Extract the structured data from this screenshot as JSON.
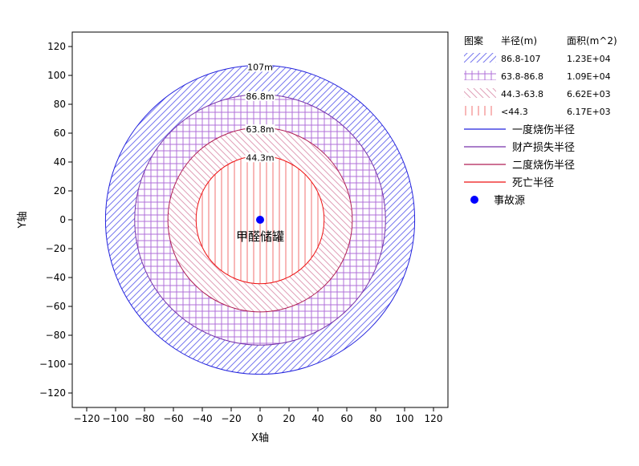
{
  "chart_data": {
    "type": "circle-zones",
    "title": "",
    "xlabel": "X轴",
    "ylabel": "Y轴",
    "xlim": [
      -130,
      130
    ],
    "ylim": [
      -130,
      130
    ],
    "xticks": [
      -120,
      -100,
      -80,
      -60,
      -40,
      -20,
      0,
      20,
      40,
      60,
      80,
      100,
      120
    ],
    "yticks": [
      -120,
      -100,
      -80,
      -60,
      -40,
      -20,
      0,
      20,
      40,
      60,
      80,
      100,
      120
    ],
    "grid": false,
    "source": {
      "x": 0,
      "y": 0,
      "label": "甲醛储罐",
      "color": "#0000ff"
    },
    "circles": [
      {
        "name": "一度烧伤半径",
        "radius": 107,
        "label": "107m",
        "color": "#2222dd",
        "hatch": "diag-right",
        "hatch_color": "#7777ee",
        "range": "86.8-107",
        "area": "1.23E+04"
      },
      {
        "name": "财产损失半径",
        "radius": 86.8,
        "label": "86.8m",
        "color": "#7733aa",
        "hatch": "grid",
        "hatch_color": "#b070d8",
        "range": "63.8-86.8",
        "area": "1.09E+04"
      },
      {
        "name": "二度烧伤半径",
        "radius": 63.8,
        "label": "63.8m",
        "color": "#b01e55",
        "hatch": "diag-left",
        "hatch_color": "#e0a0b8",
        "range": "44.3-63.8",
        "area": "6.62E+03"
      },
      {
        "name": "死亡半径",
        "radius": 44.3,
        "label": "44.3m",
        "color": "#ee1111",
        "hatch": "vertical",
        "hatch_color": "#f07070",
        "range": "<44.3",
        "area": "6.17E+03"
      }
    ],
    "legend": {
      "placement": "right",
      "header": {
        "pattern": "图案",
        "radius": "半径(m)",
        "area": "面积(m^2)"
      },
      "source_label": "事故源"
    }
  }
}
